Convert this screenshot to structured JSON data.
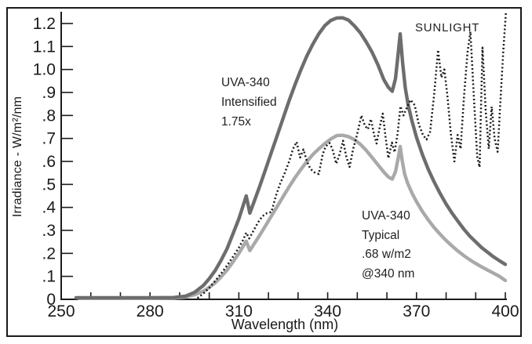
{
  "figure": {
    "xlabel": "Wavelength (nm)",
    "ylabel": "Irradiance - W/m²/nm"
  },
  "annotations": {
    "intensified": {
      "lines": [
        "UVA-340",
        "Intensified",
        "1.75x"
      ]
    },
    "typical": {
      "lines": [
        "UVA-340",
        "Typical",
        ".68 w/m2",
        "@340 nm"
      ]
    },
    "sunlight": {
      "label": "SUNLIGHT"
    }
  },
  "colors": {
    "axis": "#1c1c1c",
    "intensified_curve": "#6d6d6d",
    "typical_curve": "#a9a9a9",
    "sunlight_curve": "#1a1a1a"
  },
  "chart_data": {
    "type": "line",
    "title": "",
    "xlabel": "Wavelength (nm)",
    "ylabel": "Irradiance - W/m²/nm",
    "xlim": [
      250,
      400
    ],
    "ylim": [
      0,
      1.26
    ],
    "grid": false,
    "legend_position": "inline-annotations",
    "x_ticks_labeled": [
      250,
      280,
      310,
      340,
      370,
      400
    ],
    "x_minor_tick_step": 10,
    "y_tick_labels": [
      "0",
      ".1",
      ".2",
      ".3",
      ".4",
      ".5",
      ".6",
      ".7",
      ".8",
      ".9",
      "1.0",
      "1.1",
      "1.2"
    ],
    "y_tick_values": [
      0,
      0.1,
      0.2,
      0.3,
      0.4,
      0.5,
      0.6,
      0.7,
      0.8,
      0.9,
      1.0,
      1.1,
      1.2
    ],
    "series": [
      {
        "name": "UVA-340 Typical .68 w/m2 @340 nm",
        "style": "solid",
        "color_key": "typical_curve",
        "width": 4.4,
        "points": [
          [
            256,
            0.004
          ],
          [
            264,
            0.004
          ],
          [
            272,
            0.004
          ],
          [
            280,
            0.004
          ],
          [
            288,
            0.005
          ],
          [
            292,
            0.01
          ],
          [
            295,
            0.02
          ],
          [
            298,
            0.035
          ],
          [
            300,
            0.052
          ],
          [
            302,
            0.072
          ],
          [
            304,
            0.098
          ],
          [
            306,
            0.127
          ],
          [
            308,
            0.163
          ],
          [
            310,
            0.2
          ],
          [
            311.5,
            0.232
          ],
          [
            312.5,
            0.253
          ],
          [
            313.7,
            0.212
          ],
          [
            315,
            0.238
          ],
          [
            317,
            0.278
          ],
          [
            319,
            0.32
          ],
          [
            321,
            0.363
          ],
          [
            323,
            0.405
          ],
          [
            325,
            0.448
          ],
          [
            327,
            0.49
          ],
          [
            329,
            0.53
          ],
          [
            331,
            0.566
          ],
          [
            333,
            0.6
          ],
          [
            335,
            0.63
          ],
          [
            337,
            0.655
          ],
          [
            339,
            0.677
          ],
          [
            341,
            0.697
          ],
          [
            343,
            0.712
          ],
          [
            345,
            0.714
          ],
          [
            347,
            0.708
          ],
          [
            349,
            0.695
          ],
          [
            351,
            0.675
          ],
          [
            353,
            0.648
          ],
          [
            355,
            0.617
          ],
          [
            357,
            0.585
          ],
          [
            359,
            0.553
          ],
          [
            360.5,
            0.532
          ],
          [
            361.8,
            0.523
          ],
          [
            362.9,
            0.555
          ],
          [
            363.9,
            0.62
          ],
          [
            364.5,
            0.665
          ],
          [
            365.2,
            0.6
          ],
          [
            366,
            0.545
          ],
          [
            367,
            0.505
          ],
          [
            368.5,
            0.462
          ],
          [
            370,
            0.425
          ],
          [
            372,
            0.382
          ],
          [
            374,
            0.345
          ],
          [
            376,
            0.312
          ],
          [
            378,
            0.283
          ],
          [
            380,
            0.256
          ],
          [
            382,
            0.232
          ],
          [
            384,
            0.21
          ],
          [
            386,
            0.19
          ],
          [
            388,
            0.172
          ],
          [
            390,
            0.156
          ],
          [
            392,
            0.141
          ],
          [
            394,
            0.127
          ],
          [
            396,
            0.114
          ],
          [
            398,
            0.1
          ],
          [
            400,
            0.082
          ]
        ]
      },
      {
        "name": "UVA-340 Intensified 1.75x",
        "style": "solid",
        "color_key": "intensified_curve",
        "width": 4.4,
        "points": [
          [
            255,
            0.007
          ],
          [
            264,
            0.007
          ],
          [
            272,
            0.007
          ],
          [
            280,
            0.007
          ],
          [
            288,
            0.008
          ],
          [
            292,
            0.014
          ],
          [
            295,
            0.03
          ],
          [
            298,
            0.06
          ],
          [
            300,
            0.09
          ],
          [
            302,
            0.125
          ],
          [
            304,
            0.17
          ],
          [
            306,
            0.22
          ],
          [
            308,
            0.285
          ],
          [
            310,
            0.35
          ],
          [
            311.5,
            0.41
          ],
          [
            312.5,
            0.45
          ],
          [
            313.7,
            0.375
          ],
          [
            315,
            0.42
          ],
          [
            317,
            0.49
          ],
          [
            319,
            0.565
          ],
          [
            321,
            0.64
          ],
          [
            323,
            0.715
          ],
          [
            325,
            0.79
          ],
          [
            327,
            0.865
          ],
          [
            329,
            0.935
          ],
          [
            331,
            1.0
          ],
          [
            333,
            1.06
          ],
          [
            335,
            1.11
          ],
          [
            337,
            1.155
          ],
          [
            339,
            1.19
          ],
          [
            341,
            1.213
          ],
          [
            343,
            1.224
          ],
          [
            345,
            1.225
          ],
          [
            347,
            1.215
          ],
          [
            349,
            1.19
          ],
          [
            351,
            1.16
          ],
          [
            353,
            1.12
          ],
          [
            355,
            1.075
          ],
          [
            357,
            1.02
          ],
          [
            359,
            0.955
          ],
          [
            360.5,
            0.922
          ],
          [
            361.8,
            0.905
          ],
          [
            362.9,
            0.96
          ],
          [
            363.9,
            1.08
          ],
          [
            364.5,
            1.155
          ],
          [
            365.3,
            1.03
          ],
          [
            366.2,
            0.92
          ],
          [
            367.2,
            0.845
          ],
          [
            368.5,
            0.775
          ],
          [
            370,
            0.705
          ],
          [
            372,
            0.63
          ],
          [
            374,
            0.565
          ],
          [
            376,
            0.51
          ],
          [
            378,
            0.46
          ],
          [
            380,
            0.415
          ],
          [
            382,
            0.375
          ],
          [
            384,
            0.34
          ],
          [
            386,
            0.305
          ],
          [
            388,
            0.275
          ],
          [
            390,
            0.25
          ],
          [
            392,
            0.225
          ],
          [
            394,
            0.205
          ],
          [
            396,
            0.185
          ],
          [
            398,
            0.168
          ],
          [
            400,
            0.152
          ]
        ]
      },
      {
        "name": "SUNLIGHT",
        "style": "dotted",
        "color_key": "sunlight_curve",
        "width": 2.5,
        "points": [
          [
            296,
            0.005
          ],
          [
            298,
            0.025
          ],
          [
            300,
            0.05
          ],
          [
            302,
            0.08
          ],
          [
            304,
            0.112
          ],
          [
            306,
            0.147
          ],
          [
            308,
            0.185
          ],
          [
            310,
            0.225
          ],
          [
            311.5,
            0.26
          ],
          [
            312.5,
            0.29
          ],
          [
            313.5,
            0.265
          ],
          [
            315,
            0.3
          ],
          [
            316.5,
            0.335
          ],
          [
            318,
            0.362
          ],
          [
            319.5,
            0.375
          ],
          [
            321,
            0.38
          ],
          [
            322.5,
            0.45
          ],
          [
            324,
            0.505
          ],
          [
            325.5,
            0.55
          ],
          [
            327,
            0.6
          ],
          [
            328.3,
            0.655
          ],
          [
            329.5,
            0.685
          ],
          [
            330.7,
            0.617
          ],
          [
            331.8,
            0.652
          ],
          [
            333,
            0.6
          ],
          [
            334.2,
            0.567
          ],
          [
            335.6,
            0.552
          ],
          [
            337,
            0.545
          ],
          [
            338.3,
            0.63
          ],
          [
            339.3,
            0.665
          ],
          [
            340.6,
            0.68
          ],
          [
            341.6,
            0.655
          ],
          [
            342.9,
            0.59
          ],
          [
            344,
            0.63
          ],
          [
            345.2,
            0.69
          ],
          [
            346.3,
            0.62
          ],
          [
            347.4,
            0.576
          ],
          [
            348.6,
            0.655
          ],
          [
            349.8,
            0.71
          ],
          [
            351.4,
            0.8
          ],
          [
            352.6,
            0.755
          ],
          [
            353.6,
            0.74
          ],
          [
            354.6,
            0.784
          ],
          [
            355.6,
            0.72
          ],
          [
            356.5,
            0.678
          ],
          [
            357.6,
            0.75
          ],
          [
            358.6,
            0.808
          ],
          [
            359.6,
            0.7
          ],
          [
            360.5,
            0.614
          ],
          [
            361.7,
            0.682
          ],
          [
            362.6,
            0.64
          ],
          [
            363.6,
            0.72
          ],
          [
            364.6,
            0.84
          ],
          [
            365.6,
            0.8
          ],
          [
            366.6,
            0.83
          ],
          [
            368,
            0.868
          ],
          [
            369.4,
            0.845
          ],
          [
            370.8,
            0.76
          ],
          [
            372.2,
            0.715
          ],
          [
            373.4,
            0.695
          ],
          [
            374.6,
            0.73
          ],
          [
            376,
            0.895
          ],
          [
            377.3,
            1.085
          ],
          [
            378.4,
            0.965
          ],
          [
            379.4,
            1.0
          ],
          [
            380.5,
            0.878
          ],
          [
            381.6,
            0.72
          ],
          [
            382.8,
            0.6
          ],
          [
            383.9,
            0.715
          ],
          [
            384.9,
            0.655
          ],
          [
            386,
            0.875
          ],
          [
            387.2,
            1.07
          ],
          [
            388.2,
            1.165
          ],
          [
            389.4,
            0.875
          ],
          [
            390.5,
            0.62
          ],
          [
            391.3,
            0.575
          ],
          [
            392.3,
            1.095
          ],
          [
            393.4,
            0.815
          ],
          [
            394.4,
            0.655
          ],
          [
            395.4,
            0.838
          ],
          [
            396.4,
            0.698
          ],
          [
            397.4,
            0.642
          ],
          [
            398.4,
            0.878
          ],
          [
            399.3,
            1.08
          ],
          [
            400.2,
            1.25
          ]
        ]
      }
    ]
  }
}
